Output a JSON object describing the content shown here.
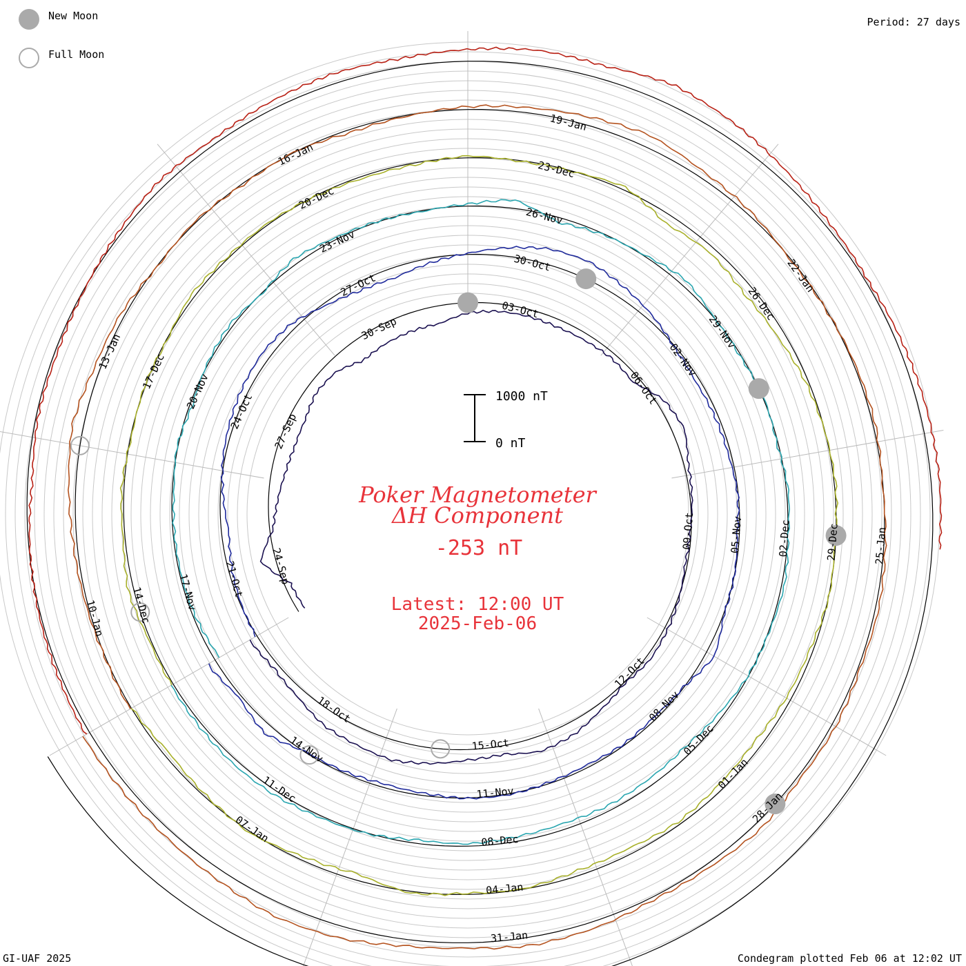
{
  "header": {
    "legend": {
      "new_moon_label": "New Moon",
      "full_moon_label": "Full Moon",
      "new_moon_color": "#aaaaaa",
      "full_moon_color": "#aaaaaa"
    },
    "period_label": "Period: 27 days"
  },
  "footer": {
    "credit": "GI-UAF 2025",
    "plotted_label": "Condegram plotted Feb 06 at 12:02 UT"
  },
  "center": {
    "title_line1": "Poker Magnetometer",
    "title_line2": "ΔH Component",
    "current_value": "-253 nT",
    "latest_line1": "Latest: 12:00 UT",
    "latest_line2": "2025-Feb-06",
    "scale_top_label": "1000 nT",
    "scale_bottom_label": "0 nT"
  },
  "chart_data": {
    "type": "line",
    "layout": "condegram-spiral",
    "period_days": 27,
    "scale_nT": [
      0,
      1000
    ],
    "series": [
      {
        "color": "#1a1050",
        "values": [
          -150,
          -130,
          320,
          -80,
          -200,
          -300,
          -350,
          -330,
          -220,
          -250,
          -450,
          -400,
          -380,
          -380,
          -220,
          -160,
          -150,
          -160,
          -140,
          -110,
          -150,
          160,
          260,
          90,
          40,
          -20,
          -50,
          20,
          70,
          100,
          20,
          120,
          270,
          320,
          180,
          220,
          330,
          420,
          370,
          330,
          180,
          110,
          180
        ]
      },
      {
        "color": "#1f2a9c",
        "values": [
          20,
          -20,
          -80,
          -160,
          -60,
          40,
          100,
          150,
          180,
          120,
          -60,
          -180,
          -220,
          -100,
          20,
          180,
          330,
          360,
          240,
          120,
          -30,
          -90,
          -70,
          -60,
          -10,
          -50,
          0,
          10,
          190,
          -10,
          -60,
          -30,
          -60,
          -30,
          20,
          10,
          -50,
          -80,
          -40,
          -20,
          200,
          50,
          180
        ]
      },
      {
        "color": "#2aa6b0",
        "values": [
          -110,
          -50,
          -30,
          -30,
          -40,
          20,
          -60,
          20,
          70,
          -20,
          120,
          40,
          10,
          -20,
          40,
          180,
          -110,
          -20,
          20,
          130,
          0,
          -30,
          20,
          -30,
          40,
          10,
          60,
          10,
          -10,
          -100,
          -170,
          -140,
          -110,
          -130,
          -100,
          -50,
          -80,
          10,
          40,
          90,
          100,
          70,
          50
        ]
      },
      {
        "color": "#a8b02a",
        "values": [
          40,
          30,
          120,
          40,
          50,
          -20,
          10,
          -20,
          80,
          30,
          30,
          -10,
          -50,
          -40,
          40,
          -20,
          -10,
          70,
          -200,
          -120,
          -210,
          -160,
          -60,
          0,
          30,
          -20,
          10,
          -70,
          -100,
          -160,
          -120,
          -60,
          -130,
          -110,
          -10,
          -30,
          40,
          -140,
          -80,
          30,
          -40,
          -110,
          -10
        ]
      },
      {
        "color": "#b4521e",
        "values": [
          30,
          10,
          40,
          80,
          150,
          240,
          120,
          90,
          -20,
          30,
          -30,
          10,
          -70,
          -20,
          60,
          110,
          180,
          260,
          140,
          80,
          -20,
          -10,
          30,
          50,
          -10,
          30,
          70,
          40,
          90,
          60,
          150,
          80,
          60,
          140,
          180,
          110,
          140,
          260,
          300,
          210,
          160,
          150,
          160
        ]
      },
      {
        "color": "#b82014",
        "values": [
          90,
          60,
          30,
          -20,
          -100,
          -40,
          -60,
          -20,
          60,
          150,
          100,
          160,
          210,
          180,
          250,
          320,
          280,
          420,
          330,
          200,
          90,
          50,
          110,
          160,
          180,
          160
        ]
      }
    ]
  },
  "ring_labels": [
    [
      "24-Sep",
      "27-Sep",
      "30-Sep",
      "03-Oct",
      "06-Oct",
      "09-Oct",
      "12-Oct",
      "15-Oct",
      "18-Oct"
    ],
    [
      "21-Oct",
      "24-Oct",
      "27-Oct",
      "30-Oct",
      "02-Nov",
      "05-Nov",
      "08-Nov",
      "11-Nov",
      "14-Nov"
    ],
    [
      "17-Nov",
      "20-Nov",
      "23-Nov",
      "26-Nov",
      "29-Nov",
      "02-Dec",
      "05-Dec",
      "08-Dec",
      "11-Dec"
    ],
    [
      "14-Dec",
      "17-Dec",
      "20-Dec",
      "23-Dec",
      "26-Dec",
      "29-Dec",
      "01-Jan",
      "04-Jan",
      "07-Jan"
    ],
    [
      "10-Jan",
      "13-Jan",
      "16-Jan",
      "19-Jan",
      "22-Jan",
      "25-Jan",
      "28-Jan",
      "31-Jan"
    ]
  ],
  "moons": [
    {
      "phase": "new",
      "date": "03-Oct"
    },
    {
      "phase": "full",
      "date": "17-Oct"
    },
    {
      "phase": "new",
      "date": "01-Nov"
    },
    {
      "phase": "full",
      "date": "15-Nov"
    },
    {
      "phase": "new",
      "date": "01-Dec"
    },
    {
      "phase": "full",
      "date": "15-Dec"
    },
    {
      "phase": "new",
      "date": "30-Dec"
    },
    {
      "phase": "full",
      "date": "13-Jan"
    },
    {
      "phase": "new",
      "date": "29-Jan"
    }
  ]
}
